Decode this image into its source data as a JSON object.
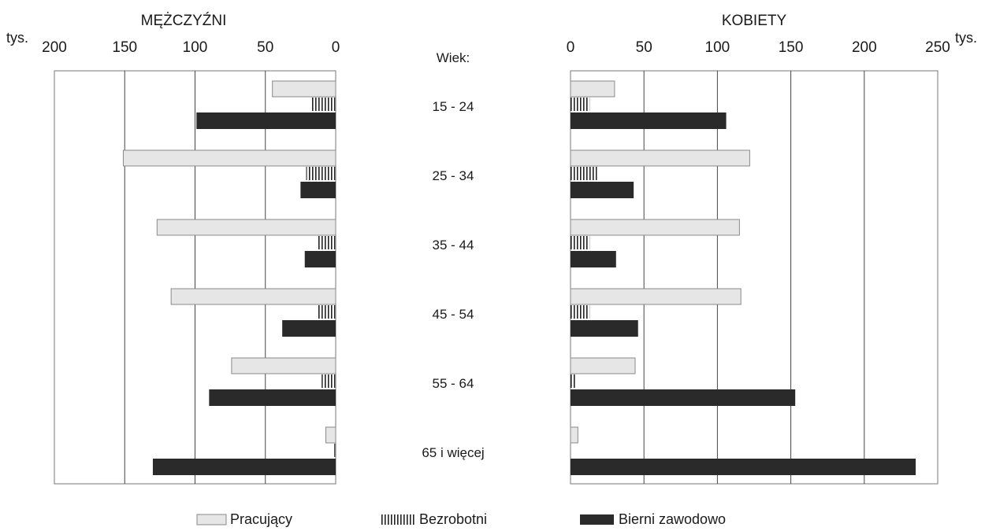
{
  "chart_data": [
    {
      "type": "bar",
      "orientation": "horizontal",
      "direction": "right-to-left",
      "title": "MĘŻCZYŹNI",
      "unit_label": "tys.",
      "xlim": [
        0,
        200
      ],
      "ticks": [
        200,
        150,
        100,
        50,
        0
      ],
      "grid": true,
      "categories_title": "Wiek:",
      "categories": [
        "15 - 24",
        "25 - 34",
        "35 - 44",
        "45 - 54",
        "55 - 64",
        "65 i więcej"
      ],
      "series": [
        {
          "name": "Pracujący",
          "values": [
            45,
            151,
            127,
            117,
            74,
            7
          ]
        },
        {
          "name": "Bezrobotni",
          "values": [
            17,
            21,
            13,
            13,
            10,
            1
          ]
        },
        {
          "name": "Bierni zawodowo",
          "values": [
            99,
            25,
            22,
            38,
            90,
            130
          ]
        }
      ]
    },
    {
      "type": "bar",
      "orientation": "horizontal",
      "direction": "left-to-right",
      "title": "KOBIETY",
      "unit_label": "tys.",
      "xlim": [
        0,
        250
      ],
      "ticks": [
        0,
        50,
        100,
        150,
        200,
        250
      ],
      "grid": true,
      "categories_title": "Wiek:",
      "categories": [
        "15 - 24",
        "25 - 34",
        "35 - 44",
        "45 - 54",
        "55 - 64",
        "65 i więcej"
      ],
      "series": [
        {
          "name": "Pracujący",
          "values": [
            30,
            122,
            115,
            116,
            44,
            5
          ]
        },
        {
          "name": "Bezrobotni",
          "values": [
            13,
            18,
            13,
            13,
            4,
            0
          ]
        },
        {
          "name": "Bierni zawodowo",
          "values": [
            106,
            43,
            31,
            46,
            153,
            235
          ]
        }
      ]
    }
  ],
  "legend": [
    {
      "label": "Pracujący",
      "pattern": "light-fill"
    },
    {
      "label": "Bezrobotni",
      "pattern": "vertical-hatch"
    },
    {
      "label": "Bierni zawodowo",
      "pattern": "dark-fill"
    }
  ],
  "colors": {
    "pracujacy": "#e6e6e6",
    "bezrobotni_lines": "#222222",
    "bierni": "#2a2a2a",
    "grid": "#444444",
    "frame": "#777777"
  }
}
